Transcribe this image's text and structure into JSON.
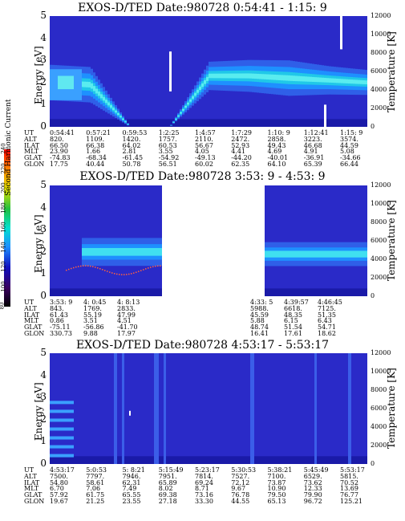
{
  "panels": [
    {
      "title": "EXOS-D/TED   Date:980728   0:54:41 - 1:15: 9",
      "ylabel": "Energy [eV]",
      "ylabel_right": "Temperature [K]",
      "energy_ticks": [
        "0",
        "1",
        "2",
        "3",
        "4",
        "5"
      ],
      "temp_ticks": [
        "0",
        "2000",
        "4000",
        "6000",
        "8000",
        "10000",
        "12000"
      ],
      "ephemeris": {
        "labels": [
          "UT",
          "ALT",
          "ILAT",
          "MLT",
          "GLAT",
          "GLON"
        ],
        "columns": [
          [
            "0:54:41",
            "820.",
            "66.50",
            "23.90",
            "-74.83",
            "17.75"
          ],
          [
            "0:57:21",
            "1109.",
            "66.38",
            "1.66",
            "-68.34",
            "40.44"
          ],
          [
            "0:59:53",
            "1420.",
            "64.02",
            "2.81",
            "-61.45",
            "50.78"
          ],
          [
            "1:2:25",
            "1757.",
            "60.53",
            "3.55",
            "-54.92",
            "56.51"
          ],
          [
            "1:4:57",
            "2110.",
            "56.67",
            "4.05",
            "-49.13",
            "60.02"
          ],
          [
            "1:7:29",
            "2472.",
            "52.93",
            "4.41",
            "-44.20",
            "62.35"
          ],
          [
            "1:10: 9",
            "2858.",
            "49.43",
            "4.69",
            "-40.01",
            "64.10"
          ],
          [
            "1:12:41",
            "3223.",
            "46.68",
            "4.91",
            "-36.91",
            "65.39"
          ],
          [
            "1:15: 9",
            "3574.",
            "44.59",
            "5.08",
            "-34.66",
            "66.44"
          ]
        ]
      }
    },
    {
      "title": "EXOS-D/TED   Date:980728   3:53: 9 - 4:53: 9",
      "ylabel": "Energy [eV]",
      "ylabel_right": "Temperature [K]",
      "energy_ticks": [
        "0",
        "1",
        "2",
        "3",
        "4",
        "5"
      ],
      "temp_ticks": [
        "0",
        "2000",
        "4000",
        "6000",
        "8000",
        "10000",
        "12000"
      ],
      "ephemeris": {
        "labels": [
          "UT",
          "ALT",
          "ILAT",
          "MLT",
          "GLAT",
          "GLON"
        ],
        "columns": [
          [
            "3:53: 9",
            "843.",
            "61.43",
            "0.86",
            "-75.11",
            "330.73"
          ],
          [
            "4: 0:45",
            "1769.",
            "55.19",
            "3.51",
            "-56.86",
            "9.88"
          ],
          [
            "4: 8:13",
            "2833.",
            "47.99",
            "4.51",
            "-41.70",
            "17.97"
          ],
          [
            "4:33: 5",
            "5988.",
            "45.59",
            "5.88",
            "48.74",
            "16.41"
          ],
          [
            "4:39:57",
            "6618.",
            "48.35",
            "6.15",
            "51.54",
            "17.61"
          ],
          [
            "4:46:45",
            "7125.",
            "51.35",
            "6.43",
            "54.71",
            "18.62"
          ]
        ]
      }
    },
    {
      "title": "EXOS-D/TED   Date:980728   4:53:17 - 5:53:17",
      "ylabel": "Energy [eV]",
      "ylabel_right": "Temperature [K]",
      "energy_ticks": [
        "0",
        "1",
        "2",
        "3",
        "4",
        "5"
      ],
      "temp_ticks": [
        "0",
        "2000",
        "4000",
        "6000",
        "8000",
        "10000",
        "12000"
      ],
      "ephemeris": {
        "labels": [
          "UT",
          "ALT",
          "ILAT",
          "MLT",
          "GLAT",
          "GLON"
        ],
        "columns": [
          [
            "4:53:17",
            "7500.",
            "54.80",
            "6.70",
            "57.92",
            "19.67"
          ],
          [
            "5:0:53",
            "7797.",
            "58.61",
            "7.06",
            "61.75",
            "21.25"
          ],
          [
            "5: 8:21",
            "7946.",
            "62.31",
            "7.49",
            "65.55",
            "23.55"
          ],
          [
            "5:15:49",
            "7951.",
            "65.89",
            "8.02",
            "69.38",
            "27.18"
          ],
          [
            "5:23:17",
            "7814.",
            "69.24",
            "8.71",
            "73.16",
            "33.30"
          ],
          [
            "5:30:53",
            "7527.",
            "72.12",
            "9.67",
            "76.78",
            "44.55"
          ],
          [
            "5:38:21",
            "7100.",
            "73.87",
            "10.90",
            "79.50",
            "65.13"
          ],
          [
            "5:45:49",
            "6529.",
            "73.62",
            "12.33",
            "79.90",
            "96.72"
          ],
          [
            "5:53:17",
            "5815.",
            "70.52",
            "13.69",
            "76.77",
            "125.21"
          ]
        ]
      }
    }
  ],
  "colorbar": {
    "label": "Second Harmonic Current",
    "ticks": [
      "80",
      "100",
      "120",
      "140",
      "160",
      "180",
      "200",
      "220",
      "240"
    ]
  },
  "chart_data": [
    {
      "type": "heatmap",
      "title": "EXOS-D/TED   Date:980728   0:54:41 - 1:15: 9",
      "ylabel": "Energy [eV]",
      "ylabel_right": "Temperature [K]",
      "ylim": [
        0,
        5
      ],
      "ylim_right": [
        0,
        12000
      ],
      "x": [
        "0:54:41",
        "0:57:21",
        "0:59:53",
        "1:2:25",
        "1:4:57",
        "1:7:29",
        "1:10: 9",
        "1:12:41",
        "1:15: 9"
      ],
      "band_center_ev": [
        2.0,
        1.9,
        0.0,
        0.0,
        2.3,
        2.3,
        2.2,
        2.1,
        2.0
      ],
      "band_halfwidth_ev": [
        0.5,
        0.5,
        0.0,
        0.0,
        0.4,
        0.45,
        0.5,
        0.4,
        0.35
      ],
      "colorbar_range": [
        80,
        240
      ]
    },
    {
      "type": "heatmap",
      "title": "EXOS-D/TED   Date:980728   3:53: 9 - 4:53: 9",
      "ylabel": "Energy [eV]",
      "ylabel_right": "Temperature [K]",
      "ylim": [
        0,
        5
      ],
      "ylim_right": [
        0,
        12000
      ],
      "x": [
        "3:53: 9",
        "4: 0:45",
        "4: 8:13",
        "4:33: 5",
        "4:39:57",
        "4:46:45"
      ],
      "band_center_ev": [
        0.0,
        2.0,
        2.0,
        1.8,
        1.9,
        2.0
      ],
      "band_halfwidth_ev": [
        0.0,
        0.35,
        0.35,
        0.3,
        0.3,
        0.3
      ],
      "colorbar_range": [
        80,
        240
      ]
    },
    {
      "type": "heatmap",
      "title": "EXOS-D/TED   Date:980728   4:53:17 - 5:53:17",
      "ylabel": "Energy [eV]",
      "ylabel_right": "Temperature [K]",
      "ylim": [
        0,
        5
      ],
      "ylim_right": [
        0,
        12000
      ],
      "x": [
        "4:53:17",
        "5:0:53",
        "5: 8:21",
        "5:15:49",
        "5:23:17",
        "5:30:53",
        "5:38:21",
        "5:45:49",
        "5:53:17"
      ],
      "band_center_ev": [
        1.5,
        0.0,
        0.0,
        0.0,
        0.0,
        0.0,
        0.0,
        0.0,
        0.0
      ],
      "band_halfwidth_ev": [
        1.2,
        0.0,
        0.0,
        0.0,
        0.0,
        0.0,
        0.0,
        0.0,
        0.0
      ],
      "colorbar_range": [
        80,
        240
      ]
    }
  ]
}
